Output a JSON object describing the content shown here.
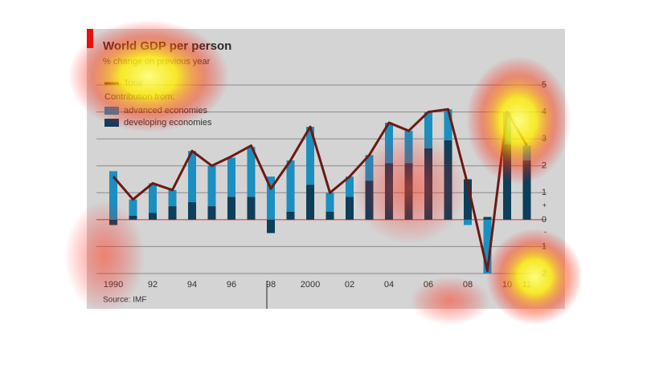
{
  "chart_data": {
    "type": "bar",
    "title": "World GDP per person",
    "subtitle": "% change on previous year",
    "source": "Source: IMF",
    "legend_heading": "Contribution from:",
    "categories": [
      "1990",
      null,
      "92",
      null,
      "94",
      null,
      "96",
      null,
      "98",
      null,
      "2000",
      null,
      "02",
      null,
      "04",
      null,
      "06",
      null,
      "08",
      null,
      "10",
      "11"
    ],
    "series": [
      {
        "name": "Total",
        "type": "line",
        "color": "#6b1a12",
        "values": [
          1.6,
          0.75,
          1.35,
          1.1,
          2.55,
          2.0,
          2.35,
          2.75,
          1.15,
          2.2,
          3.45,
          1.0,
          1.6,
          2.4,
          3.6,
          3.3,
          4.0,
          4.1,
          1.3,
          -1.9,
          4.0,
          2.75
        ]
      },
      {
        "name": "advanced economies",
        "type": "bar",
        "color": "#1b8fc0",
        "values": [
          1.8,
          0.6,
          1.1,
          0.6,
          1.9,
          1.5,
          1.45,
          1.85,
          1.6,
          1.9,
          2.15,
          0.7,
          0.75,
          0.95,
          1.5,
          1.2,
          1.35,
          1.15,
          -0.2,
          -2.0,
          1.2,
          0.55
        ]
      },
      {
        "name": "developing economies",
        "type": "bar",
        "color": "#0d3e5a",
        "values": [
          -0.2,
          0.15,
          0.25,
          0.5,
          0.65,
          0.5,
          0.85,
          0.85,
          -0.5,
          0.3,
          1.3,
          0.3,
          0.85,
          1.45,
          2.1,
          2.1,
          2.65,
          2.95,
          1.5,
          0.1,
          2.8,
          2.2
        ]
      }
    ],
    "ylim": [
      -2,
      5
    ],
    "yticks": [
      {
        "value": -2,
        "label": "2"
      },
      {
        "value": -1,
        "label": "1"
      },
      0,
      1,
      2,
      3,
      4,
      5
    ],
    "sign_markers": [
      "+",
      "-"
    ],
    "grid": true,
    "legend": "top-left"
  }
}
